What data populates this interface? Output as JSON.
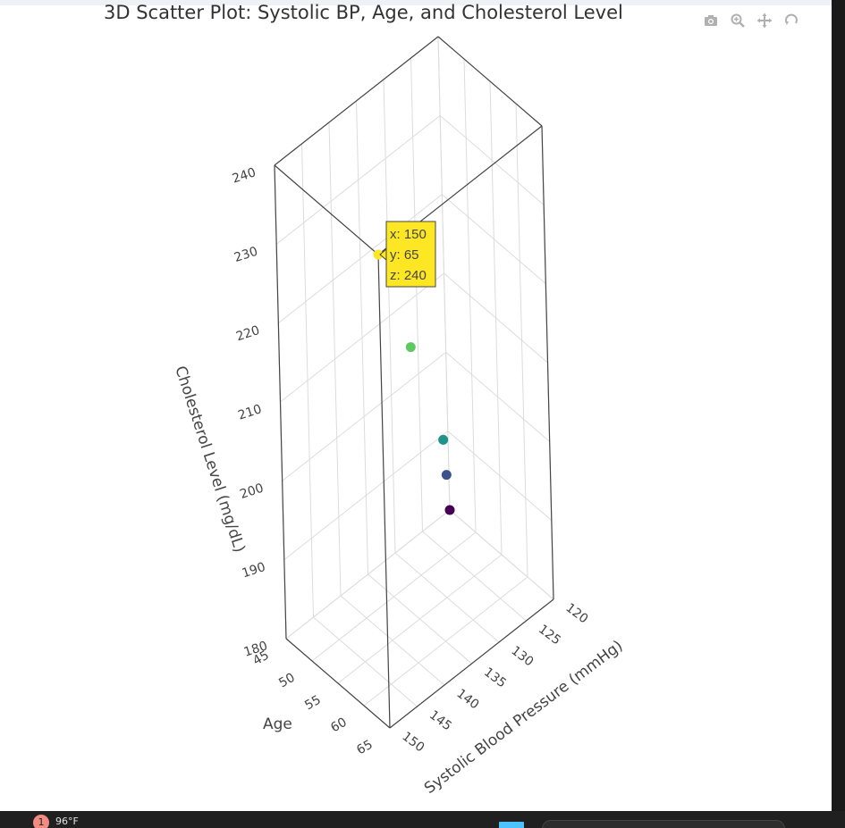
{
  "chart_data": {
    "type": "scatter3d",
    "title": "3D Scatter Plot: Systolic BP, Age, and Cholesterol Level",
    "x_axis": {
      "label": "Systolic Blood Pressure (mmHg)",
      "range": [
        120,
        150
      ],
      "ticks": [
        120,
        125,
        130,
        135,
        140,
        145,
        150
      ]
    },
    "y_axis": {
      "label": "Age",
      "range": [
        45,
        65
      ],
      "ticks": [
        45,
        50,
        55,
        60,
        65
      ]
    },
    "z_axis": {
      "label": "Cholesterol Level (mg/dL)",
      "range": [
        180,
        240
      ],
      "ticks": [
        180,
        190,
        200,
        210,
        220,
        230,
        240
      ]
    },
    "grid": true,
    "colorscale": "viridis",
    "points": [
      {
        "x": 120,
        "y": 45,
        "z": 180,
        "color": "#440154"
      },
      {
        "x": 125,
        "y": 50,
        "z": 190,
        "color": "#3b528b"
      },
      {
        "x": 130,
        "y": 55,
        "z": 200,
        "color": "#21918c"
      },
      {
        "x": 140,
        "y": 60,
        "z": 220,
        "color": "#5ec962"
      },
      {
        "x": 150,
        "y": 65,
        "z": 240,
        "color": "#fde725"
      }
    ],
    "hover": {
      "x_label": "x: 150",
      "y_label": "y: 65",
      "z_label": "z: 240"
    }
  },
  "modebar": {
    "icons": [
      "camera-icon",
      "zoom-icon",
      "pan-icon",
      "orbit-rotation-icon"
    ]
  },
  "taskbar": {
    "notification_count": "1",
    "weather": "96°F"
  }
}
